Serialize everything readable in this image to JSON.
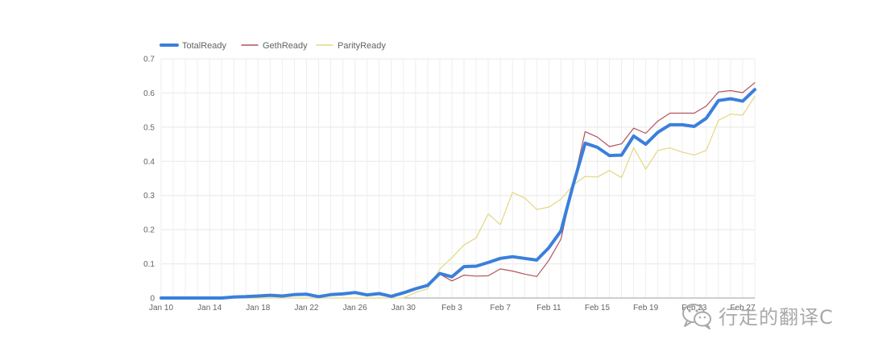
{
  "chart_data": {
    "type": "line",
    "title": "",
    "xlabel": "",
    "ylabel": "",
    "ylim": [
      0,
      0.7
    ],
    "yticks": [
      "0",
      "0.1",
      "0.2",
      "0.3",
      "0.4",
      "0.5",
      "0.6",
      "0.7"
    ],
    "xtick_labels": [
      "Jan 10",
      "Jan 14",
      "Jan 18",
      "Jan 22",
      "Jan 26",
      "Jan 30",
      "Feb 3",
      "Feb 7",
      "Feb 11",
      "Feb 15",
      "Feb 19",
      "Feb 23",
      "Feb 27"
    ],
    "x": [
      "Jan 10",
      "Jan 11",
      "Jan 12",
      "Jan 13",
      "Jan 14",
      "Jan 15",
      "Jan 16",
      "Jan 17",
      "Jan 18",
      "Jan 19",
      "Jan 20",
      "Jan 21",
      "Jan 22",
      "Jan 23",
      "Jan 24",
      "Jan 25",
      "Jan 26",
      "Jan 27",
      "Jan 28",
      "Jan 29",
      "Jan 30",
      "Jan 31",
      "Feb 1",
      "Feb 2",
      "Feb 3",
      "Feb 4",
      "Feb 5",
      "Feb 6",
      "Feb 7",
      "Feb 8",
      "Feb 9",
      "Feb 10",
      "Feb 11",
      "Feb 12",
      "Feb 13",
      "Feb 14",
      "Feb 15",
      "Feb 16",
      "Feb 17",
      "Feb 18",
      "Feb 19",
      "Feb 20",
      "Feb 21",
      "Feb 22",
      "Feb 23",
      "Feb 24",
      "Feb 25",
      "Feb 26",
      "Feb 27",
      "Feb 28"
    ],
    "legend_position": "top-left",
    "grid": true,
    "series": [
      {
        "name": "TotalReady",
        "color": "#3a7fdc",
        "values": [
          0,
          0,
          0,
          0,
          0,
          0,
          0.003,
          0.004,
          0.006,
          0.008,
          0.006,
          0.01,
          0.011,
          0.004,
          0.01,
          0.012,
          0.016,
          0.009,
          0.013,
          0.005,
          0.015,
          0.027,
          0.037,
          0.072,
          0.062,
          0.092,
          0.093,
          0.104,
          0.116,
          0.121,
          0.116,
          0.111,
          0.147,
          0.196,
          0.33,
          0.453,
          0.441,
          0.417,
          0.418,
          0.474,
          0.45,
          0.485,
          0.507,
          0.507,
          0.502,
          0.526,
          0.578,
          0.583,
          0.576,
          0.61
        ]
      },
      {
        "name": "GethReady",
        "color": "#b0525e",
        "values": [
          0,
          0,
          0,
          0,
          0,
          0,
          0.003,
          0.004,
          0.006,
          0.008,
          0.006,
          0.01,
          0.011,
          0.004,
          0.01,
          0.012,
          0.016,
          0.009,
          0.013,
          0.005,
          0.015,
          0.027,
          0.037,
          0.07,
          0.05,
          0.067,
          0.064,
          0.065,
          0.085,
          0.079,
          0.07,
          0.063,
          0.11,
          0.172,
          0.33,
          0.487,
          0.471,
          0.443,
          0.451,
          0.497,
          0.482,
          0.518,
          0.541,
          0.541,
          0.541,
          0.562,
          0.603,
          0.607,
          0.601,
          0.63
        ]
      },
      {
        "name": "ParityReady",
        "color": "#e3d780",
        "values": [
          0,
          0,
          0,
          0,
          0,
          0,
          0,
          0,
          0,
          0,
          0,
          0,
          0,
          0,
          0,
          0,
          0,
          0,
          0,
          0,
          0,
          0.016,
          0.027,
          0.085,
          0.118,
          0.155,
          0.176,
          0.246,
          0.215,
          0.309,
          0.293,
          0.259,
          0.266,
          0.289,
          0.33,
          0.356,
          0.354,
          0.373,
          0.352,
          0.44,
          0.377,
          0.432,
          0.439,
          0.427,
          0.418,
          0.432,
          0.52,
          0.538,
          0.535,
          0.59
        ]
      }
    ]
  },
  "watermark": {
    "text": "行走的翻译C"
  }
}
